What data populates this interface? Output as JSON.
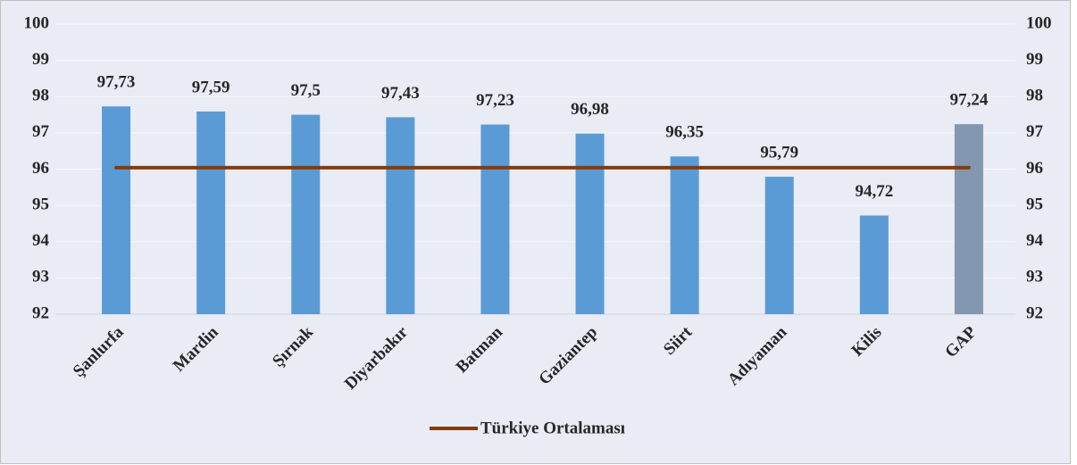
{
  "chart_data": {
    "type": "bar",
    "categories": [
      "Şanlurfa",
      "Mardin",
      "Şırnak",
      "Diyarbakır",
      "Batman",
      "Gaziantep",
      "Siirt",
      "Adıyaman",
      "Kilis",
      "GAP"
    ],
    "values": [
      97.73,
      97.59,
      97.5,
      97.43,
      97.23,
      96.98,
      96.35,
      95.79,
      94.72,
      97.24
    ],
    "value_labels": [
      "97,73",
      "97,59",
      "97,5",
      "97,43",
      "97,23",
      "96,98",
      "96,35",
      "95,79",
      "94,72",
      "97,24"
    ],
    "colors": [
      "#5b9bd5",
      "#5b9bd5",
      "#5b9bd5",
      "#5b9bd5",
      "#5b9bd5",
      "#5b9bd5",
      "#5b9bd5",
      "#5b9bd5",
      "#5b9bd5",
      "#8497b0"
    ],
    "line": {
      "name": "Türkiye Ortalaması",
      "color": "#843c0c",
      "values": [
        96.04,
        96.04,
        96.04,
        96.04,
        96.04,
        96.04,
        96.04,
        96.04,
        96.04,
        96.04
      ]
    },
    "ylim": [
      92,
      100
    ],
    "yticks": [
      92,
      93,
      94,
      95,
      96,
      97,
      98,
      99,
      100
    ],
    "y2lim": [
      92,
      100
    ],
    "y2ticks": [
      92,
      93,
      94,
      95,
      96,
      97,
      98,
      99,
      100
    ],
    "grid": true,
    "legend": "bottom"
  }
}
